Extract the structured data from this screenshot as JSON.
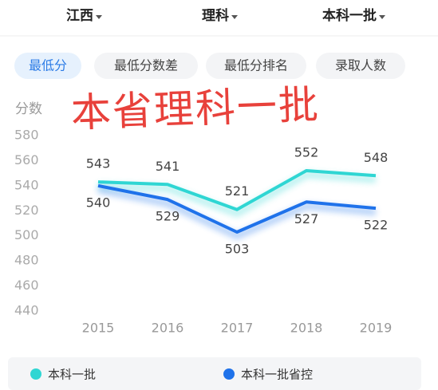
{
  "filters": [
    "江西",
    "理科",
    "本科一批"
  ],
  "tabs": [
    "最低分",
    "最低分数差",
    "最低分排名",
    "录取人数"
  ],
  "overlay_text": "本省理科一批",
  "chart_data": {
    "type": "line",
    "y_label": "分数",
    "categories": [
      "2015",
      "2016",
      "2017",
      "2018",
      "2019"
    ],
    "series": [
      {
        "name": "本科一批",
        "color": "#2fd6d3",
        "values": [
          543,
          541,
          521,
          552,
          548
        ]
      },
      {
        "name": "本科一批省控",
        "color": "#1f72ea",
        "values": [
          540,
          529,
          503,
          527,
          522
        ]
      }
    ],
    "ylim": [
      440,
      580
    ],
    "yticks": [
      440,
      460,
      480,
      500,
      520,
      540,
      560,
      580
    ],
    "grid": false
  }
}
